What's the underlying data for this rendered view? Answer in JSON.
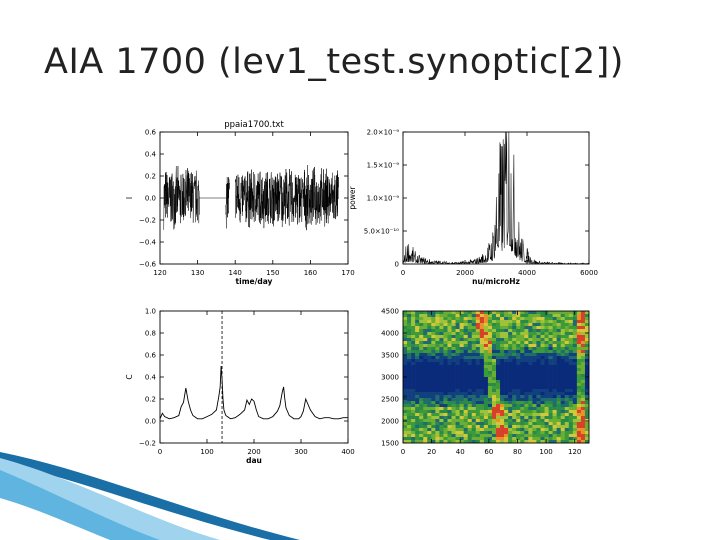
{
  "slide": {
    "title": "AIA 1700 (lev1_test.synoptic[2])"
  },
  "colors": {
    "ink": "#000000",
    "swoosh_dark": "#1a6fa6",
    "swoosh_light": "#9fd3ee"
  },
  "chart_data": [
    {
      "type": "line",
      "title": "ppaia1700.txt",
      "xlabel": "time/day",
      "ylabel": "I",
      "xlim": [
        120,
        170
      ],
      "ylim": [
        -0.6,
        0.6
      ],
      "xticks": [
        120,
        130,
        140,
        150,
        160,
        170
      ],
      "yticks": [
        -0.6,
        -0.4,
        -0.2,
        0.0,
        0.2,
        0.4,
        0.6
      ],
      "ytick_labels": [
        "−0.6",
        "−0.4",
        "−0.2",
        "0.0",
        "0.2",
        "0.4",
        "0.6"
      ],
      "segments": [
        {
          "x": [
            121,
            130.5
          ],
          "kind": "noise",
          "amplitude": 0.3
        },
        {
          "x": [
            130.5,
            138
          ],
          "kind": "flat",
          "value": 0.0
        },
        {
          "x": [
            137.5,
            138.5
          ],
          "kind": "noise",
          "amplitude": 0.3
        },
        {
          "x": [
            140,
            167.5
          ],
          "kind": "noise",
          "amplitude": 0.3
        }
      ]
    },
    {
      "type": "line",
      "title": "",
      "xlabel": "nu/microHz",
      "ylabel": "power",
      "xlim": [
        0,
        6000
      ],
      "ylim": [
        0,
        2e-09
      ],
      "xticks": [
        0,
        2000,
        4000,
        6000
      ],
      "yticks": [
        0,
        5e-10,
        1e-09,
        1.5e-09,
        2e-09
      ],
      "ytick_labels": [
        "0",
        "5.0×10⁻¹⁰",
        "1.0×10⁻⁹",
        "1.5×10⁻⁹",
        "2.0×10⁻⁹"
      ],
      "x": [
        0,
        100,
        200,
        300,
        400,
        500,
        700,
        900,
        1200,
        1500,
        1800,
        2100,
        2400,
        2600,
        2800,
        2900,
        3000,
        3100,
        3200,
        3300,
        3400,
        3500,
        3600,
        3700,
        3800,
        3900,
        4000,
        4100,
        4200,
        4300,
        4500,
        4800,
        5200,
        5600,
        6000
      ],
      "y": [
        1e-11,
        1.8e-10,
        2.4e-10,
        1.6e-10,
        1.1e-10,
        8e-11,
        6e-11,
        4e-11,
        3e-11,
        2e-11,
        2e-11,
        3e-11,
        6e-11,
        1.1e-10,
        2.2e-10,
        3.5e-10,
        8.5e-10,
        1.05e-09,
        1.25e-09,
        1.7e-09,
        1.95e-09,
        1.3e-09,
        9e-10,
        5e-10,
        3e-10,
        2e-10,
        1.5e-10,
        9e-11,
        6e-11,
        3e-11,
        2e-11,
        1.5e-11,
        1e-11,
        1e-11,
        1e-11
      ]
    },
    {
      "type": "line",
      "title": "",
      "xlabel": "dau",
      "ylabel": "C",
      "xlim": [
        0,
        400
      ],
      "ylim": [
        -0.2,
        1.0
      ],
      "xticks": [
        0,
        100,
        200,
        300,
        400
      ],
      "yticks": [
        -0.2,
        0.0,
        0.2,
        0.4,
        0.6,
        0.8,
        1.0
      ],
      "ytick_labels": [
        "−0.2",
        "0.0",
        "0.2",
        "0.4",
        "0.6",
        "0.8",
        "1.0"
      ],
      "marker_line_x": 132,
      "x": [
        0,
        5,
        10,
        20,
        30,
        40,
        45,
        50,
        55,
        60,
        65,
        70,
        80,
        90,
        100,
        110,
        120,
        125,
        128,
        130,
        132,
        134,
        136,
        140,
        150,
        160,
        170,
        180,
        185,
        190,
        195,
        200,
        205,
        210,
        220,
        230,
        240,
        250,
        255,
        260,
        263,
        265,
        268,
        275,
        285,
        295,
        300,
        305,
        310,
        320,
        330,
        340,
        350,
        360,
        370,
        380,
        390,
        400
      ],
      "y": [
        0.02,
        0.07,
        0.04,
        0.02,
        0.03,
        0.05,
        0.13,
        0.17,
        0.3,
        0.18,
        0.1,
        0.05,
        0.02,
        0.02,
        0.04,
        0.06,
        0.1,
        0.22,
        0.31,
        0.5,
        0.38,
        0.2,
        0.1,
        0.05,
        0.02,
        0.03,
        0.06,
        0.1,
        0.19,
        0.15,
        0.2,
        0.18,
        0.1,
        0.04,
        0.02,
        0.02,
        0.04,
        0.09,
        0.14,
        0.26,
        0.31,
        0.22,
        0.12,
        0.05,
        0.02,
        0.02,
        0.04,
        0.09,
        0.2,
        0.1,
        0.04,
        0.02,
        0.03,
        0.03,
        0.02,
        0.02,
        0.03,
        0.03
      ]
    },
    {
      "type": "heatmap",
      "title": "",
      "xlim": [
        0,
        130
      ],
      "ylim": [
        1500,
        4500
      ],
      "xticks": [
        0,
        20,
        40,
        60,
        80,
        100,
        120
      ],
      "yticks": [
        1500,
        2000,
        2500,
        3000,
        3500,
        4000,
        4500
      ],
      "dark_band_y": [
        2300,
        3700
      ],
      "bright_ridge_x": [
        62,
        125
      ]
    }
  ]
}
